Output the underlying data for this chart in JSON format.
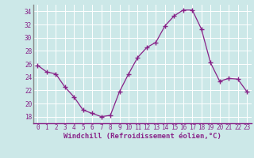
{
  "x": [
    0,
    1,
    2,
    3,
    4,
    5,
    6,
    7,
    8,
    9,
    10,
    11,
    12,
    13,
    14,
    15,
    16,
    17,
    18,
    19,
    20,
    21,
    22,
    23
  ],
  "y": [
    25.8,
    24.8,
    24.5,
    22.5,
    21.0,
    19.0,
    18.5,
    18.0,
    18.2,
    21.8,
    24.5,
    27.0,
    28.5,
    29.3,
    31.8,
    33.3,
    34.2,
    34.2,
    31.3,
    26.2,
    23.4,
    23.8,
    23.7,
    21.8
  ],
  "line_color": "#882288",
  "marker": "+",
  "marker_size": 4,
  "bg_color": "#cce8e8",
  "grid_color": "#ffffff",
  "tick_color": "#882288",
  "xlabel": "Windchill (Refroidissement éolien,°C)",
  "xlabel_color": "#882288",
  "ylim": [
    17,
    35
  ],
  "yticks": [
    18,
    20,
    22,
    24,
    26,
    28,
    30,
    32,
    34
  ],
  "xticks": [
    0,
    1,
    2,
    3,
    4,
    5,
    6,
    7,
    8,
    9,
    10,
    11,
    12,
    13,
    14,
    15,
    16,
    17,
    18,
    19,
    20,
    21,
    22,
    23
  ],
  "spine_left_color": "#888888",
  "spine_bottom_color": "#882288",
  "tick_fontsize": 5.5,
  "xlabel_fontsize": 6.5
}
